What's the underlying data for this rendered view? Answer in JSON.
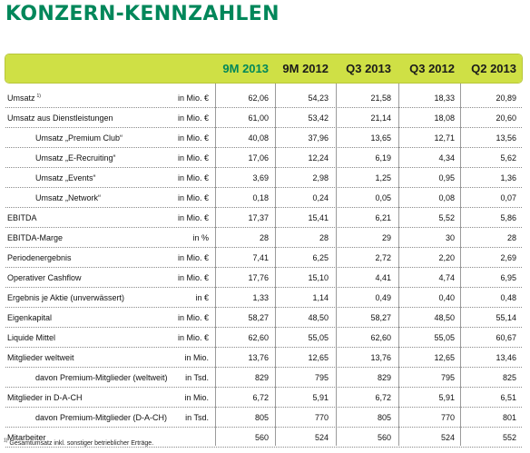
{
  "title": "KONZERN-KENNZAHLEN",
  "columns": [
    "9M 2013",
    "9M 2012",
    "Q3 2013",
    "Q3 2012",
    "Q2 2013"
  ],
  "highlight_color": "#00875a",
  "header_band_color": "#cfe045",
  "rows": [
    {
      "label": "Umsatz",
      "sup": "1)",
      "indent": false,
      "unit": "in Mio. €",
      "values": [
        "62,06",
        "54,23",
        "21,58",
        "18,33",
        "20,89"
      ]
    },
    {
      "label": "Umsatz aus Dienstleistungen",
      "sup": "",
      "indent": false,
      "unit": "in Mio. €",
      "values": [
        "61,00",
        "53,42",
        "21,14",
        "18,08",
        "20,60"
      ]
    },
    {
      "label": "Umsatz „Premium Club“",
      "sup": "",
      "indent": true,
      "unit": "in Mio. €",
      "values": [
        "40,08",
        "37,96",
        "13,65",
        "12,71",
        "13,56"
      ]
    },
    {
      "label": "Umsatz „E-Recruiting“",
      "sup": "",
      "indent": true,
      "unit": "in Mio. €",
      "values": [
        "17,06",
        "12,24",
        "6,19",
        "4,34",
        "5,62"
      ]
    },
    {
      "label": "Umsatz „Events“",
      "sup": "",
      "indent": true,
      "unit": "in Mio. €",
      "values": [
        "3,69",
        "2,98",
        "1,25",
        "0,95",
        "1,36"
      ]
    },
    {
      "label": "Umsatz „Network“",
      "sup": "",
      "indent": true,
      "unit": "in Mio. €",
      "values": [
        "0,18",
        "0,24",
        "0,05",
        "0,08",
        "0,07"
      ]
    },
    {
      "label": "EBITDA",
      "sup": "",
      "indent": false,
      "unit": "in Mio. €",
      "values": [
        "17,37",
        "15,41",
        "6,21",
        "5,52",
        "5,86"
      ]
    },
    {
      "label": "EBITDA-Marge",
      "sup": "",
      "indent": false,
      "unit": "in %",
      "values": [
        "28",
        "28",
        "29",
        "30",
        "28"
      ]
    },
    {
      "label": "Periodenergebnis",
      "sup": "",
      "indent": false,
      "unit": "in Mio. €",
      "values": [
        "7,41",
        "6,25",
        "2,72",
        "2,20",
        "2,69"
      ]
    },
    {
      "label": "Operativer Cashflow",
      "sup": "",
      "indent": false,
      "unit": "in Mio. €",
      "values": [
        "17,76",
        "15,10",
        "4,41",
        "4,74",
        "6,95"
      ]
    },
    {
      "label": "Ergebnis je Aktie (unverwässert)",
      "sup": "",
      "indent": false,
      "unit": "in €",
      "values": [
        "1,33",
        "1,14",
        "0,49",
        "0,40",
        "0,48"
      ]
    },
    {
      "label": "Eigenkapital",
      "sup": "",
      "indent": false,
      "unit": "in Mio. €",
      "values": [
        "58,27",
        "48,50",
        "58,27",
        "48,50",
        "55,14"
      ]
    },
    {
      "label": "Liquide Mittel",
      "sup": "",
      "indent": false,
      "unit": "in Mio. €",
      "values": [
        "62,60",
        "55,05",
        "62,60",
        "55,05",
        "60,67"
      ]
    },
    {
      "label": "Mitglieder weltweit",
      "sup": "",
      "indent": false,
      "unit": "in Mio.",
      "values": [
        "13,76",
        "12,65",
        "13,76",
        "12,65",
        "13,46"
      ]
    },
    {
      "label": "davon Premium-Mitglieder (weltweit)",
      "sup": "",
      "indent": true,
      "unit": "in Tsd.",
      "values": [
        "829",
        "795",
        "829",
        "795",
        "825"
      ]
    },
    {
      "label": "Mitglieder in D-A-CH",
      "sup": "",
      "indent": false,
      "unit": "in Mio.",
      "values": [
        "6,72",
        "5,91",
        "6,72",
        "5,91",
        "6,51"
      ]
    },
    {
      "label": "davon Premium-Mitglieder (D-A-CH)",
      "sup": "",
      "indent": true,
      "unit": "in Tsd.",
      "values": [
        "805",
        "770",
        "805",
        "770",
        "801"
      ]
    },
    {
      "label": "Mitarbeiter",
      "sup": "",
      "indent": false,
      "unit": "",
      "values": [
        "560",
        "524",
        "560",
        "524",
        "552"
      ]
    }
  ],
  "footnote": {
    "sup": "1)",
    "text": "Gesamtumsatz inkl. sonstiger betrieblicher Erträge."
  }
}
